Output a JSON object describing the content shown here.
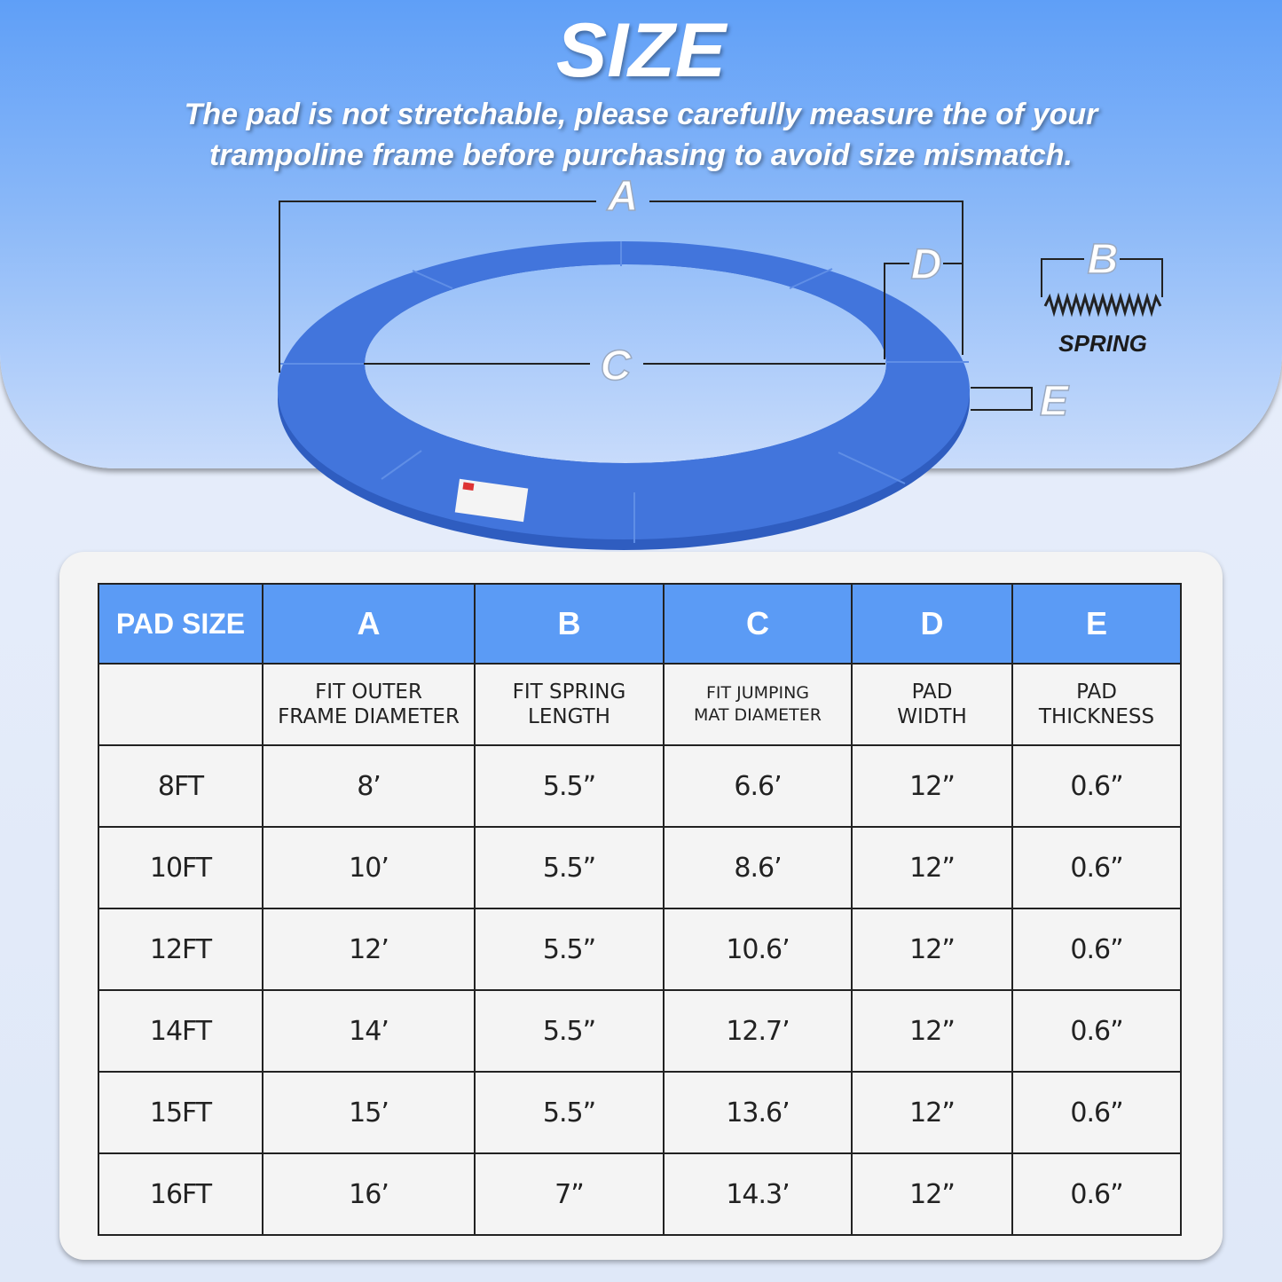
{
  "title": "SIZE",
  "subtitle_line1": "The pad is not stretchable, please carefully measure the of your",
  "subtitle_line2": "trampoline frame before purchasing to avoid size mismatch.",
  "diagram": {
    "labels": {
      "a": "A",
      "b": "B",
      "c": "C",
      "d": "D",
      "e": "E"
    },
    "spring_label": "SPRING",
    "pad_color": "#3f70d8"
  },
  "table": {
    "headers": [
      "PAD SIZE",
      "A",
      "B",
      "C",
      "D",
      "E"
    ],
    "descriptions": [
      "",
      "FIT OUTER\nFRAME DIAMETER",
      "FIT SPRING\nLENGTH",
      "FIT JUMPING\nMAT DIAMETER",
      "PAD\nWIDTH",
      "PAD\nTHICKNESS"
    ],
    "rows": [
      [
        "8FT",
        "8’",
        "5.5”",
        "6.6’",
        "12”",
        "0.6”"
      ],
      [
        "10FT",
        "10’",
        "5.5”",
        "8.6’",
        "12”",
        "0.6”"
      ],
      [
        "12FT",
        "12’",
        "5.5”",
        "10.6’",
        "12”",
        "0.6”"
      ],
      [
        "14FT",
        "14’",
        "5.5”",
        "12.7’",
        "12”",
        "0.6”"
      ],
      [
        "15FT",
        "15’",
        "5.5”",
        "13.6’",
        "12”",
        "0.6”"
      ],
      [
        "16FT",
        "16’",
        "7”",
        "14.3’",
        "12”",
        "0.6”"
      ]
    ],
    "header_color": "#5b9bf5"
  }
}
